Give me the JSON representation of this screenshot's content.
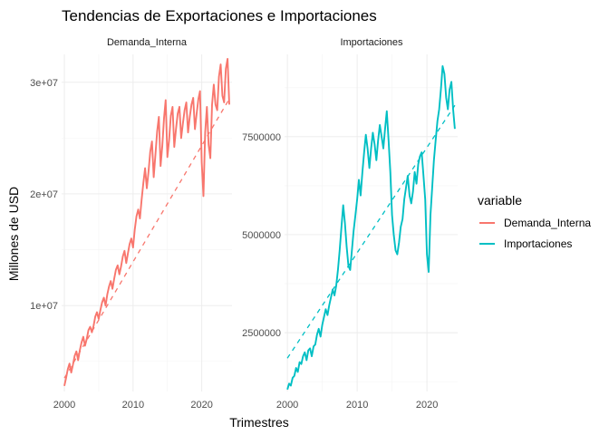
{
  "chart_data": {
    "type": "line",
    "title": "Tendencias de Exportaciones e Importaciones",
    "xlabel": "Trimestres",
    "ylabel": "Millones de USD",
    "legend": {
      "title": "variable",
      "placement": "right",
      "entries": [
        {
          "name": "Demanda_Interna",
          "color": "#F8766D"
        },
        {
          "name": "Importaciones",
          "color": "#00BFC4"
        }
      ]
    },
    "grid": true,
    "facets": [
      {
        "label": "Demanda_Interna",
        "color": "#F8766D",
        "xlim": [
          1999.6,
          2024.4
        ],
        "ylim": [
          2300000,
          32500000
        ],
        "xticks": [
          2000,
          2010,
          2020
        ],
        "xtick_labels": [
          "2000",
          "2010",
          "2020"
        ],
        "yticks": [
          10000000,
          20000000,
          30000000
        ],
        "ytick_labels": [
          "1e+07",
          "2e+07",
          "3e+07"
        ],
        "trend": {
          "x": [
            2000,
            2024
          ],
          "y": [
            3500000,
            28500000
          ]
        },
        "series": {
          "x": [
            2000.0,
            2000.25,
            2000.5,
            2000.75,
            2001.0,
            2001.25,
            2001.5,
            2001.75,
            2002.0,
            2002.25,
            2002.5,
            2002.75,
            2003.0,
            2003.25,
            2003.5,
            2003.75,
            2004.0,
            2004.25,
            2004.5,
            2004.75,
            2005.0,
            2005.25,
            2005.5,
            2005.75,
            2006.0,
            2006.25,
            2006.5,
            2006.75,
            2007.0,
            2007.25,
            2007.5,
            2007.75,
            2008.0,
            2008.25,
            2008.5,
            2008.75,
            2009.0,
            2009.25,
            2009.5,
            2009.75,
            2010.0,
            2010.25,
            2010.5,
            2010.75,
            2011.0,
            2011.25,
            2011.5,
            2011.75,
            2012.0,
            2012.25,
            2012.5,
            2012.75,
            2013.0,
            2013.25,
            2013.5,
            2013.75,
            2014.0,
            2014.25,
            2014.5,
            2014.75,
            2015.0,
            2015.25,
            2015.5,
            2015.75,
            2016.0,
            2016.25,
            2016.5,
            2016.75,
            2017.0,
            2017.25,
            2017.5,
            2017.75,
            2018.0,
            2018.25,
            2018.5,
            2018.75,
            2019.0,
            2019.25,
            2019.5,
            2019.75,
            2020.0,
            2020.25,
            2020.5,
            2020.75,
            2021.0,
            2021.25,
            2021.5,
            2021.75,
            2022.0,
            2022.25,
            2022.5,
            2022.75,
            2023.0,
            2023.25,
            2023.5,
            2023.75,
            2024.0
          ],
          "y": [
            2800000,
            3500000,
            4300000,
            4800000,
            4000000,
            4700000,
            5500000,
            5900000,
            5100000,
            6000000,
            6700000,
            7200000,
            6400000,
            7000000,
            7800000,
            8100000,
            7600000,
            8200000,
            9000000,
            9400000,
            8800000,
            9600000,
            10300000,
            10700000,
            10000000,
            11000000,
            11700000,
            12200000,
            11500000,
            12400000,
            13200000,
            13600000,
            12800000,
            13500000,
            14400000,
            14900000,
            13800000,
            14700000,
            15500000,
            16000000,
            15200000,
            16800000,
            18000000,
            18600000,
            17800000,
            19500000,
            21000000,
            22300000,
            20500000,
            22000000,
            23800000,
            24700000,
            21500000,
            23500000,
            25600000,
            26900000,
            22500000,
            24300000,
            26800000,
            28400000,
            23300000,
            24800000,
            27000000,
            27800000,
            24200000,
            25800000,
            27200000,
            27800000,
            25000000,
            26300000,
            27500000,
            28200000,
            25500000,
            26900000,
            28000000,
            28600000,
            25800000,
            27200000,
            28500000,
            29200000,
            22800000,
            19800000,
            25500000,
            27800000,
            24400000,
            23200000,
            28000000,
            29800000,
            28000000,
            27500000,
            30500000,
            31600000,
            28800000,
            28200000,
            31200000,
            32100000,
            28000000
          ]
        }
      },
      {
        "label": "Importaciones",
        "color": "#00BFC4",
        "xlim": [
          1999.6,
          2024.4
        ],
        "ylim": [
          1000000,
          9600000
        ],
        "xticks": [
          2000,
          2010,
          2020
        ],
        "xtick_labels": [
          "2000",
          "2010",
          "2020"
        ],
        "yticks": [
          2500000,
          5000000,
          7500000
        ],
        "ytick_labels": [
          "2500000",
          "5000000",
          "7500000"
        ],
        "trend": {
          "x": [
            2000,
            2024
          ],
          "y": [
            1850000,
            8300000
          ]
        },
        "series": {
          "x": [
            2000.0,
            2000.25,
            2000.5,
            2000.75,
            2001.0,
            2001.25,
            2001.5,
            2001.75,
            2002.0,
            2002.25,
            2002.5,
            2002.75,
            2003.0,
            2003.25,
            2003.5,
            2003.75,
            2004.0,
            2004.25,
            2004.5,
            2004.75,
            2005.0,
            2005.25,
            2005.5,
            2005.75,
            2006.0,
            2006.25,
            2006.5,
            2006.75,
            2007.0,
            2007.25,
            2007.5,
            2007.75,
            2008.0,
            2008.25,
            2008.5,
            2008.75,
            2009.0,
            2009.25,
            2009.5,
            2009.75,
            2010.0,
            2010.25,
            2010.5,
            2010.75,
            2011.0,
            2011.25,
            2011.5,
            2011.75,
            2012.0,
            2012.25,
            2012.5,
            2012.75,
            2013.0,
            2013.25,
            2013.5,
            2013.75,
            2014.0,
            2014.25,
            2014.5,
            2014.75,
            2015.0,
            2015.25,
            2015.5,
            2015.75,
            2016.0,
            2016.25,
            2016.5,
            2016.75,
            2017.0,
            2017.25,
            2017.5,
            2017.75,
            2018.0,
            2018.25,
            2018.5,
            2018.75,
            2019.0,
            2019.25,
            2019.5,
            2019.75,
            2020.0,
            2020.25,
            2020.5,
            2020.75,
            2021.0,
            2021.25,
            2021.5,
            2021.75,
            2022.0,
            2022.25,
            2022.5,
            2022.75,
            2023.0,
            2023.25,
            2023.5,
            2023.75,
            2024.0
          ],
          "y": [
            1050000,
            1200000,
            1150000,
            1350000,
            1400000,
            1600000,
            1500000,
            1750000,
            1700000,
            1900000,
            2000000,
            1800000,
            2050000,
            2100000,
            1900000,
            2150000,
            2200000,
            2450000,
            2600000,
            2400000,
            2700000,
            2900000,
            3100000,
            2950000,
            3200000,
            3400000,
            3600000,
            3450000,
            3700000,
            4100000,
            4600000,
            5200000,
            5750000,
            5300000,
            4700000,
            4200000,
            4100000,
            4600000,
            5100000,
            5500000,
            5900000,
            6400000,
            6000000,
            6600000,
            7100000,
            7550000,
            7200000,
            6700000,
            7200000,
            7600000,
            7300000,
            6900000,
            7400000,
            7800000,
            7500000,
            7200000,
            7700000,
            8150000,
            7400000,
            6600000,
            5500000,
            5000000,
            4600000,
            4500000,
            4800000,
            5200000,
            5400000,
            5900000,
            6200000,
            6500000,
            6000000,
            5800000,
            6100000,
            6600000,
            6300000,
            6800000,
            7000000,
            7100000,
            6500000,
            5900000,
            4500000,
            4050000,
            5500000,
            6200000,
            6900000,
            7400000,
            7900000,
            8200000,
            8700000,
            9300000,
            9100000,
            8500000,
            8200000,
            8700000,
            8900000,
            8200000,
            7700000
          ]
        }
      }
    ]
  }
}
